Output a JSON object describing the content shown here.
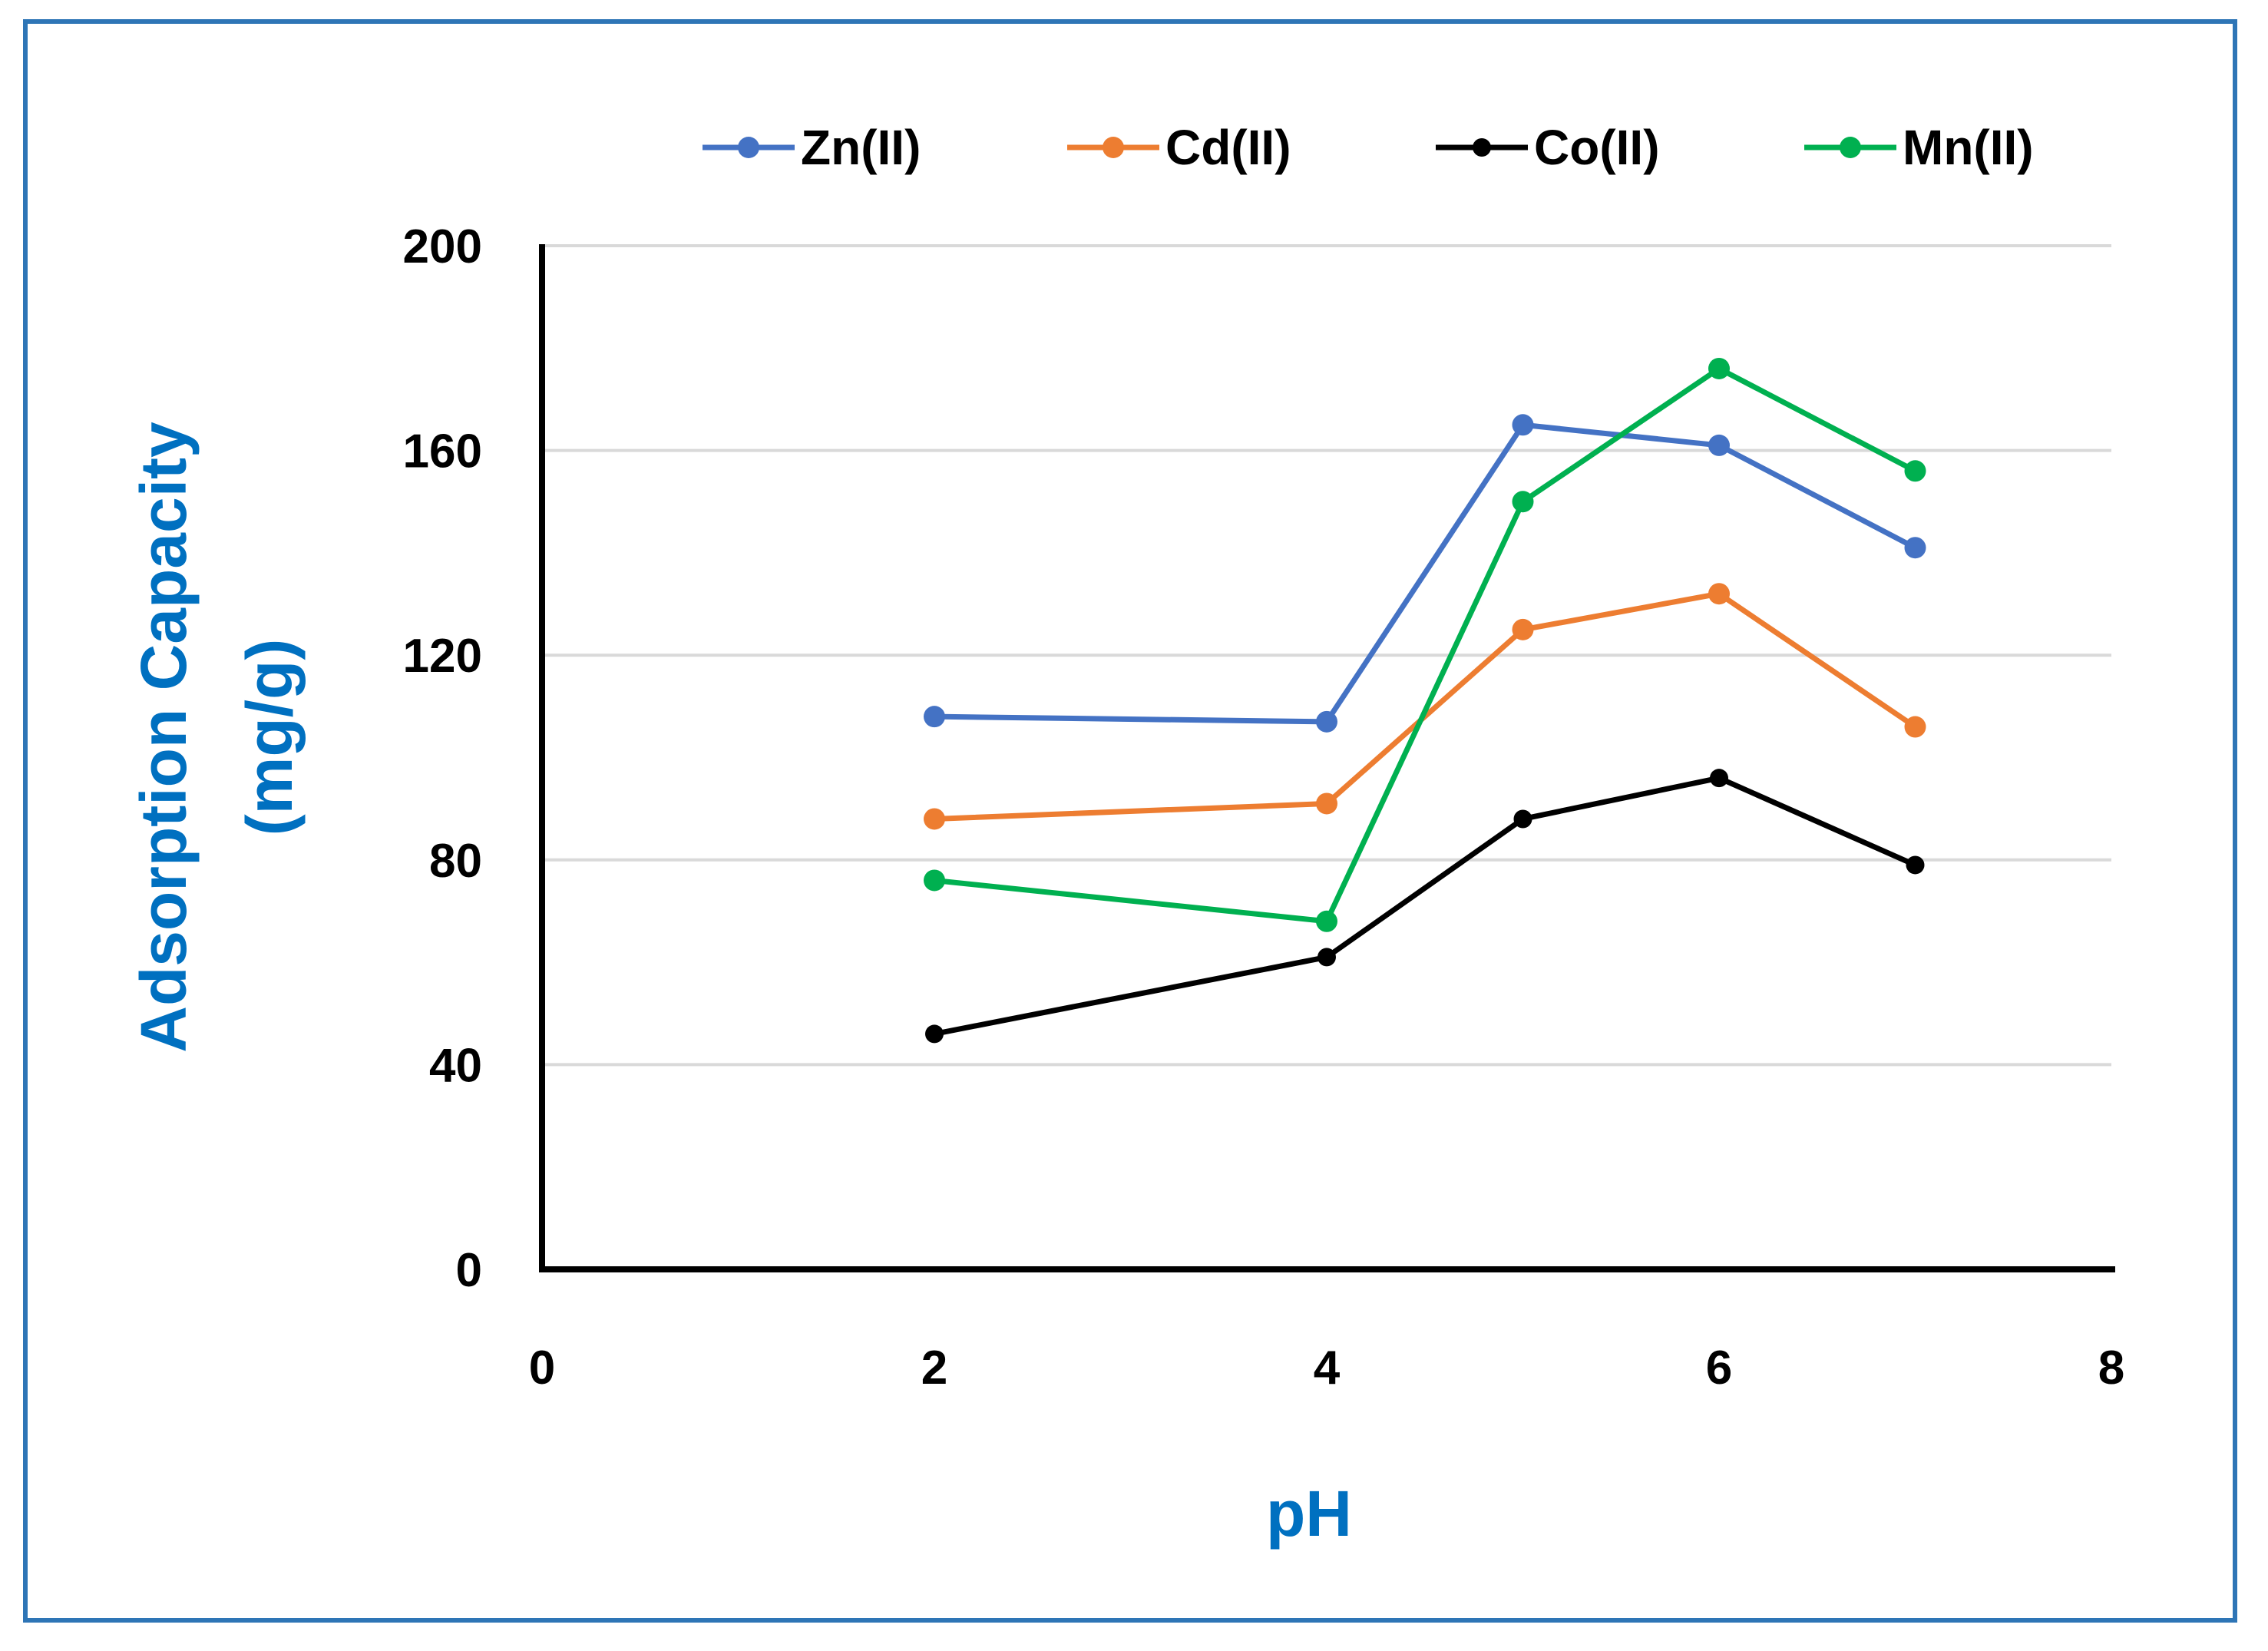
{
  "chart_data": {
    "type": "line",
    "title": "",
    "xlabel": "pH",
    "ylabel_line1": "Adsorption Capacity",
    "ylabel_line2": "(mg/g)",
    "xlim": [
      0,
      8
    ],
    "ylim": [
      0,
      200
    ],
    "x_ticks": [
      0,
      2,
      4,
      6,
      8
    ],
    "y_ticks": [
      0,
      40,
      80,
      120,
      160,
      200
    ],
    "grid": true,
    "legend_position": "top",
    "x": [
      2,
      4,
      5,
      6,
      7
    ],
    "series": [
      {
        "name": "Zn(II)",
        "color": "#4472c4",
        "values": [
          108,
          107,
          165,
          161,
          141
        ]
      },
      {
        "name": "Cd(II)",
        "color": "#ed7d31",
        "values": [
          88,
          91,
          125,
          132,
          106
        ]
      },
      {
        "name": "Co(II)",
        "color": "#000000",
        "values": [
          46,
          61,
          88,
          96,
          79
        ]
      },
      {
        "name": "Mn(II)",
        "color": "#00b050",
        "values": [
          76,
          68,
          150,
          176,
          156
        ]
      }
    ]
  }
}
